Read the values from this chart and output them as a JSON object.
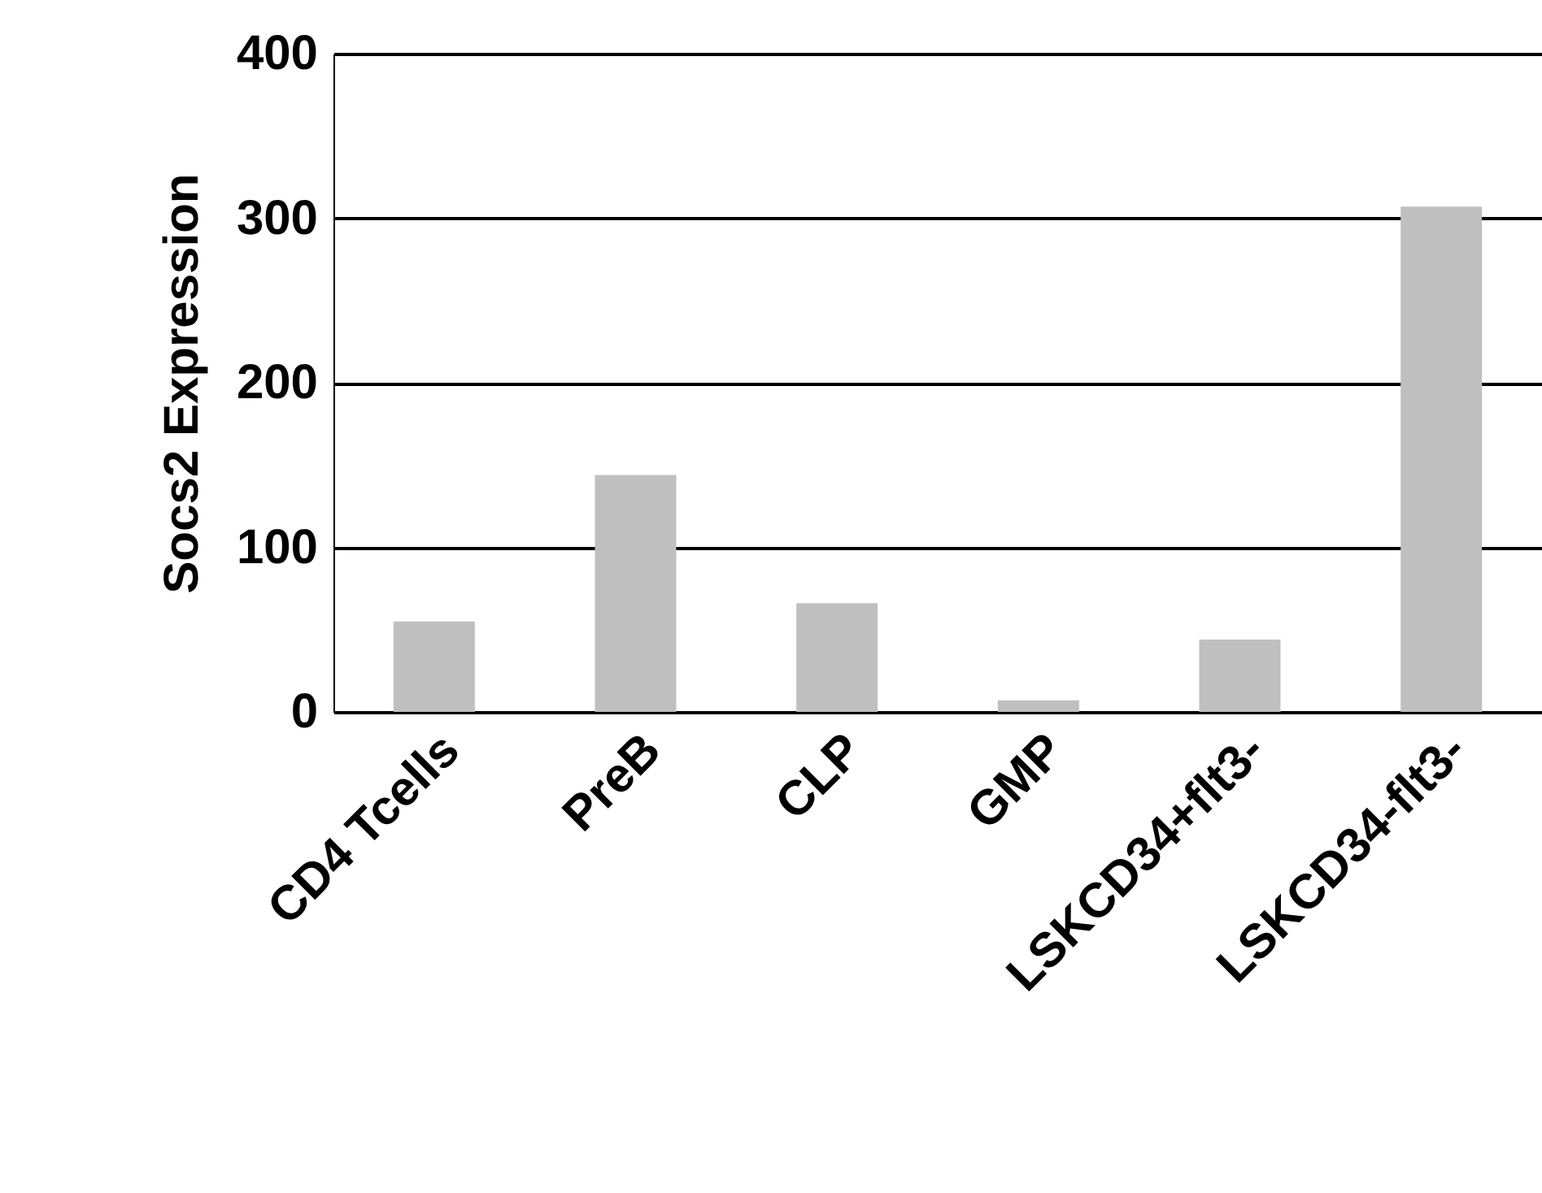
{
  "chart_data": {
    "type": "bar",
    "ylabel": "Socs2 Expression",
    "categories": [
      "CD4 Tcells",
      "PreB",
      "CLP",
      "GMP",
      "LSKCD34+flt3-",
      "LSKCD34-flt3-"
    ],
    "values": [
      55,
      144,
      66,
      7,
      44,
      307
    ],
    "color": "#bfbfbf",
    "ylim": [
      0,
      400
    ],
    "yticks": [
      0,
      100,
      200,
      300,
      400
    ],
    "grid": "y"
  }
}
